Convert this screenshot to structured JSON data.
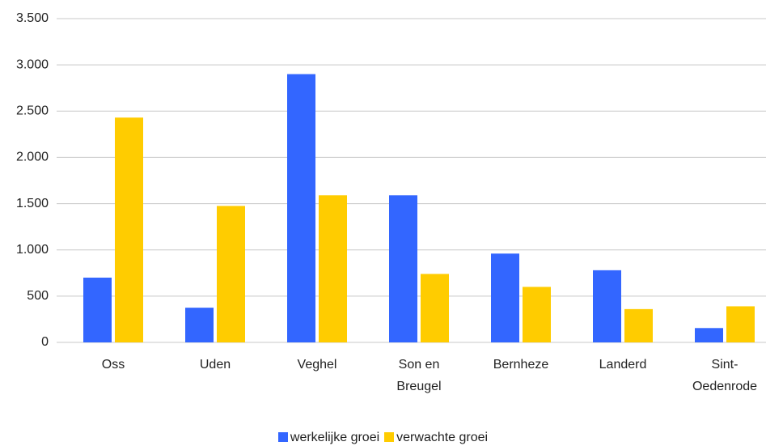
{
  "chart_data": {
    "type": "bar",
    "categories": [
      "Oss",
      "Uden",
      "Veghel",
      "Son en Breugel",
      "Bernheze",
      "Landerd",
      "Sint-Oedenrode"
    ],
    "series": [
      {
        "name": "werkelijke groei",
        "color": "#3366ff",
        "values": [
          700,
          375,
          2900,
          1590,
          960,
          780,
          155
        ]
      },
      {
        "name": "verwachte groei",
        "color": "#ffcc00",
        "values": [
          2430,
          1475,
          1590,
          740,
          600,
          360,
          390
        ]
      }
    ],
    "ylim": [
      0,
      3500
    ],
    "yticks": [
      0,
      500,
      {
        "value": 1000,
        "label": "1.000"
      },
      {
        "value": 1500,
        "label": "1.500"
      },
      {
        "value": 2000,
        "label": "2.000"
      },
      {
        "value": 2500,
        "label": "2.500"
      },
      {
        "value": 3000,
        "label": "3.000"
      },
      {
        "value": 3500,
        "label": "3.500"
      }
    ],
    "grid": true,
    "legend": "bottom"
  }
}
